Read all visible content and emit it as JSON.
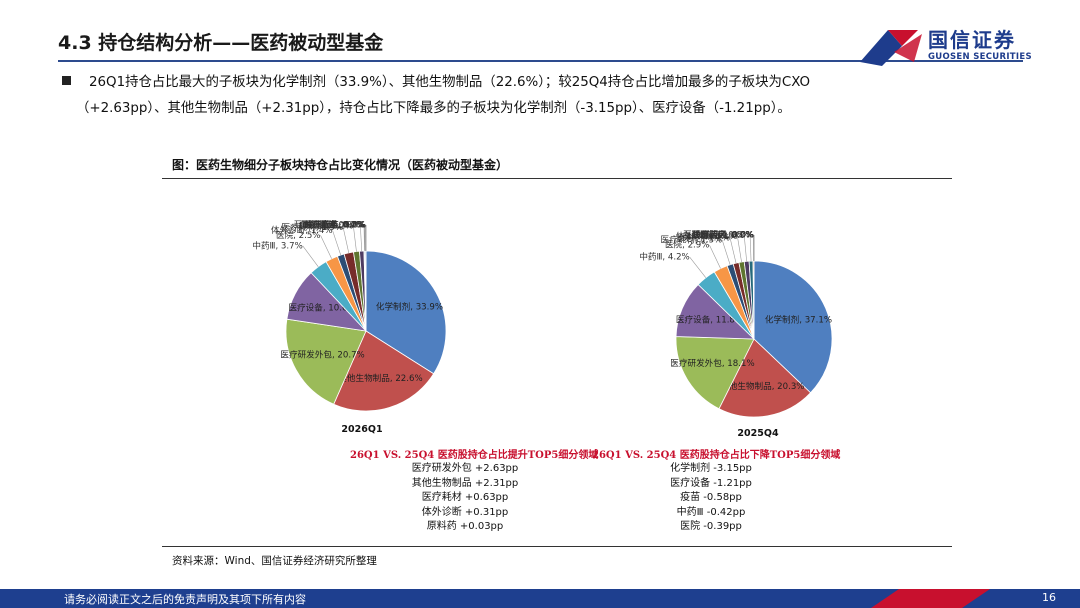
{
  "page": {
    "title": "4.3 持仓结构分析——医药被动型基金",
    "summary_line1": "26Q1持仓占比最大的子板块为化学制剂（33.9%）、其他生物制品（22.6%）；较25Q4持仓占比增加最多的子板块为CXO",
    "summary_line2": "（+2.63pp）、其他生物制品（+2.31pp），持仓占比下降最多的子板块为化学制剂（-3.15pp）、医疗设备（-1.21pp）。",
    "figure_title": "图：医药生物细分子板块持仓占比变化情况（医药被动型基金）",
    "source": "资料来源：Wind、国信证券经济研究所整理",
    "footer_text": "请务必阅读正文之后的免责声明及其项下所有内容",
    "page_number": "16"
  },
  "logo": {
    "cn": "国信证券",
    "en": "GUOSEN SECURITIES",
    "colors": {
      "blue": "#1e3c8c",
      "red": "#c8102e"
    }
  },
  "increase_list": {
    "title": "26Q1 VS. 25Q4 医药股持仓占比提升TOP5细分领域",
    "items": [
      "医疗研发外包 +2.63pp",
      "其他生物制品 +2.31pp",
      "医疗耗材 +0.63pp",
      "体外诊断 +0.31pp",
      "原料药 +0.03pp"
    ]
  },
  "decrease_list": {
    "title": "26Q1 VS. 25Q4 医药股持仓占比下降TOP5细分领域",
    "items": [
      "化学制剂 -3.15pp",
      "医疗设备 -1.21pp",
      "疫苗 -0.58pp",
      "中药Ⅲ -0.42pp",
      "医院 -0.39pp"
    ]
  },
  "chart_data": [
    {
      "type": "pie",
      "caption": "2026Q1",
      "slices": [
        {
          "name": "化学制剂",
          "value": 33.9,
          "color": "#4f7fc0",
          "label": "化学制剂, 33.9%"
        },
        {
          "name": "其他生物制品",
          "value": 22.6,
          "color": "#c0504d",
          "label": "其他生物制品, 22.6%"
        },
        {
          "name": "医疗研发外包",
          "value": 20.7,
          "color": "#9bbb59",
          "label": "医疗研发外包, 20.7%"
        },
        {
          "name": "医疗设备",
          "value": 10.6,
          "color": "#8064a2",
          "label": "医疗设备, 10.6%"
        },
        {
          "name": "中药Ⅲ",
          "value": 3.7,
          "color": "#4bacc6",
          "label": "中药Ⅲ, 3.7%"
        },
        {
          "name": "医院",
          "value": 2.5,
          "color": "#f79646",
          "label": "医院, 2.5%"
        },
        {
          "name": "体外诊断",
          "value": 1.4,
          "color": "#2c4d75",
          "label": "体外诊断, 1.4%"
        },
        {
          "name": "医疗耗材",
          "value": 1.9,
          "color": "#772c2a",
          "label": "医疗耗材, 1.9%"
        },
        {
          "name": "原料药",
          "value": 1.2,
          "color": "#5f7530",
          "label": "原料药, 1.2%"
        },
        {
          "name": "血液制品",
          "value": 0.9,
          "color": "#4d3b62",
          "label": "血液制品, 0.9%"
        },
        {
          "name": "互联网药店",
          "value": 0.2,
          "color": "#276a7c",
          "label": "互联网药店, 0.2%"
        },
        {
          "name": "医疗流通",
          "value": 0.0,
          "color": "#b65708",
          "label": "医疗流通, 0.0%"
        },
        {
          "name": "疫苗",
          "value": 0.2,
          "color": "#729aca",
          "label": "疫苗, 0.2%"
        },
        {
          "name": "诊断服务",
          "value": 0.0,
          "color": "#d9534f",
          "label": "诊断服务, 0.0%"
        },
        {
          "name": "线下药店",
          "value": 0.0,
          "color": "#afc97a",
          "label": "线下药店, 0.0%"
        }
      ]
    },
    {
      "type": "pie",
      "caption": "2025Q4",
      "slices": [
        {
          "name": "化学制剂",
          "value": 37.1,
          "color": "#4f7fc0",
          "label": "化学制剂, 37.1%"
        },
        {
          "name": "其他生物制品",
          "value": 20.3,
          "color": "#c0504d",
          "label": "其他生物制品, 20.3%"
        },
        {
          "name": "医疗研发外包",
          "value": 18.1,
          "color": "#9bbb59",
          "label": "医疗研发外包, 18.1%"
        },
        {
          "name": "医疗设备",
          "value": 11.8,
          "color": "#8064a2",
          "label": "医疗设备, 11.8%"
        },
        {
          "name": "中药Ⅲ",
          "value": 4.2,
          "color": "#4bacc6",
          "label": "中药Ⅲ, 4.2%"
        },
        {
          "name": "医院",
          "value": 2.9,
          "color": "#f79646",
          "label": "医院, 2.9%"
        },
        {
          "name": "医疗耗材",
          "value": 1.3,
          "color": "#2c4d75",
          "label": "医疗耗材, 1.3%"
        },
        {
          "name": "原料药",
          "value": 1.2,
          "color": "#772c2a",
          "label": "原料药, 1.2%"
        },
        {
          "name": "体外诊断",
          "value": 1.1,
          "color": "#5f7530",
          "label": "体外诊断, 1.1%"
        },
        {
          "name": "血液制品",
          "value": 1.0,
          "color": "#4d3b62",
          "label": "血液制品, 1.0%"
        },
        {
          "name": "疫苗",
          "value": 0.8,
          "color": "#276a7c",
          "label": "疫苗, 0.8%"
        },
        {
          "name": "互联网药店",
          "value": 0.2,
          "color": "#b65708",
          "label": "互联网药店, 0.2%"
        },
        {
          "name": "医疗流通",
          "value": 0.0,
          "color": "#729aca",
          "label": "医疗流通, 0.0%"
        },
        {
          "name": "诊断服务",
          "value": 0.0,
          "color": "#d9534f",
          "label": "诊断服务, 0.0%"
        },
        {
          "name": "线下药店",
          "value": 0.0,
          "color": "#afc97a",
          "label": "线下药店, 0.0%"
        }
      ]
    }
  ]
}
